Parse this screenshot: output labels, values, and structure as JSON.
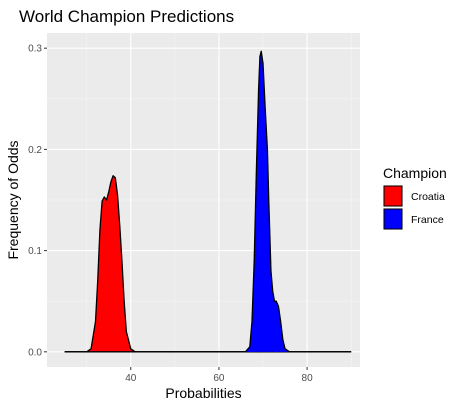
{
  "chart_data": {
    "type": "area",
    "title": "World Champion Predictions",
    "xlabel": "Probabilities",
    "ylabel": "Frequency of Odds",
    "xlim": [
      21,
      92
    ],
    "ylim": [
      -0.015,
      0.315
    ],
    "x_ticks": [
      40,
      60,
      80
    ],
    "x_tick_labels": [
      "40",
      "60",
      "80"
    ],
    "y_ticks": [
      0,
      0.1,
      0.2,
      0.3
    ],
    "y_tick_labels": [
      "0.0",
      "0.1",
      "0.2",
      "0.3"
    ],
    "grid": true,
    "legend": {
      "title": "Champion",
      "position": "right"
    },
    "series": [
      {
        "name": "Croatia",
        "color": "#ff0000",
        "x": [
          25,
          30,
          31,
          32,
          32.5,
          33,
          33.5,
          34,
          34.5,
          35,
          35.5,
          36,
          36.5,
          37,
          37.5,
          38,
          38.5,
          39,
          40,
          41,
          90
        ],
        "y": [
          0,
          0,
          0.003,
          0.03,
          0.07,
          0.12,
          0.149,
          0.153,
          0.15,
          0.158,
          0.168,
          0.174,
          0.172,
          0.155,
          0.125,
          0.09,
          0.05,
          0.02,
          0.003,
          0,
          0
        ]
      },
      {
        "name": "France",
        "color": "#0000ff",
        "x": [
          25,
          66,
          67,
          67.5,
          68,
          68.5,
          69,
          69.3,
          69.6,
          70,
          70.5,
          71,
          71.3,
          71.8,
          72.2,
          72.6,
          73,
          73.5,
          74,
          74.5,
          75,
          76,
          90
        ],
        "y": [
          0,
          0,
          0.005,
          0.03,
          0.09,
          0.18,
          0.26,
          0.292,
          0.297,
          0.285,
          0.24,
          0.2,
          0.15,
          0.08,
          0.06,
          0.05,
          0.05,
          0.045,
          0.03,
          0.012,
          0.003,
          0,
          0
        ]
      }
    ]
  }
}
